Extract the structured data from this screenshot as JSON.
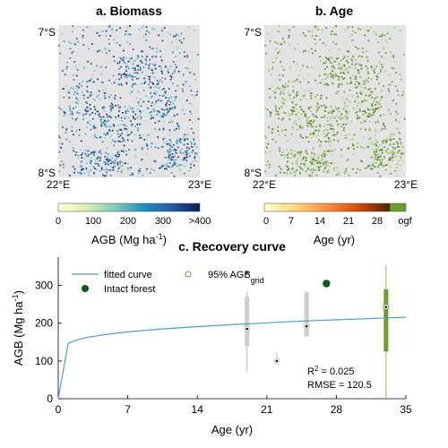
{
  "panel_a": {
    "title": "a. Biomass",
    "ylabel_top": "7°S",
    "ylabel_bottom": "8°S",
    "xlabel_left": "22°E",
    "xlabel_right": "23°E",
    "colorbar": {
      "ticks": [
        "0",
        "100",
        "200",
        "300",
        ">400"
      ],
      "label": "AGB (Mg ha",
      "label_sup": "-1",
      "label_end": ")",
      "colors": [
        "#ffffd9",
        "#c7e9b4",
        "#41b6c4",
        "#225ea8",
        "#081d58"
      ]
    }
  },
  "panel_b": {
    "title": "b. Age",
    "ylabel_top": "7°S",
    "ylabel_bottom": "8°S",
    "xlabel_left": "22°E",
    "xlabel_right": "23°E",
    "colorbar": {
      "ticks": [
        "0",
        "7",
        "14",
        "21",
        "28",
        "ogf"
      ],
      "label": "Age (yr)",
      "colors": [
        "#ffffcc",
        "#fed976",
        "#fd8d3c",
        "#e31a1c",
        "#99000d",
        "#4d2600"
      ],
      "ogf_color": "#6b9f2a"
    }
  },
  "chart_data": {
    "type": "line",
    "title": "c. Recovery curve",
    "xlabel": "Age (yr)",
    "ylabel": "AGB (Mg ha",
    "ylabel_sup": "-1",
    "ylabel_end": ")",
    "xlim": [
      0,
      35
    ],
    "ylim": [
      0,
      375
    ],
    "xticks": [
      0,
      7,
      14,
      21,
      28,
      35
    ],
    "yticks": [
      0,
      100,
      200,
      300
    ],
    "grid": false,
    "legend_placement": "top-left",
    "legend": {
      "fitted": "fitted curve",
      "agb_prefix": "95% AGB",
      "agb_sub": "grid",
      "intact": "Intact forest"
    },
    "series": [
      {
        "name": "fitted curve",
        "color": "#4a9fd6",
        "x": [
          0,
          1,
          2,
          3,
          5,
          7,
          10,
          14,
          18,
          21,
          25,
          28,
          30,
          33,
          35
        ],
        "y": [
          0,
          147,
          157,
          163,
          171,
          177,
          184,
          191,
          197,
          201,
          206,
          209,
          211,
          214,
          216
        ]
      }
    ],
    "boxes": [
      {
        "x": 19,
        "median": 185,
        "q1": 140,
        "q3": 270,
        "whisker_low": 70,
        "whisker_high": 285,
        "outliers": [
          335
        ],
        "color": "#cccccc"
      },
      {
        "x": 22,
        "median": 100,
        "q1": 97,
        "q3": 103,
        "whisker_low": 92,
        "whisker_high": 122,
        "outliers": [],
        "color": "#cccccc"
      },
      {
        "x": 25,
        "median": 192,
        "q1": 165,
        "q3": 282,
        "whisker_low": 165,
        "whisker_high": 285,
        "outliers": [],
        "color": "#cccccc"
      },
      {
        "x": 33,
        "median": 243,
        "q1": 125,
        "q3": 290,
        "whisker_low": 0,
        "whisker_high": 355,
        "outliers": [],
        "color": "#6b9f2a"
      }
    ],
    "intact_forest": {
      "x": 27,
      "y": 305,
      "color": "#0d5c0d"
    },
    "stats": {
      "r2": "R",
      "r2_sup": "2",
      "r2_val": " = 0.025",
      "rmse": "RMSE = 120.5"
    }
  }
}
